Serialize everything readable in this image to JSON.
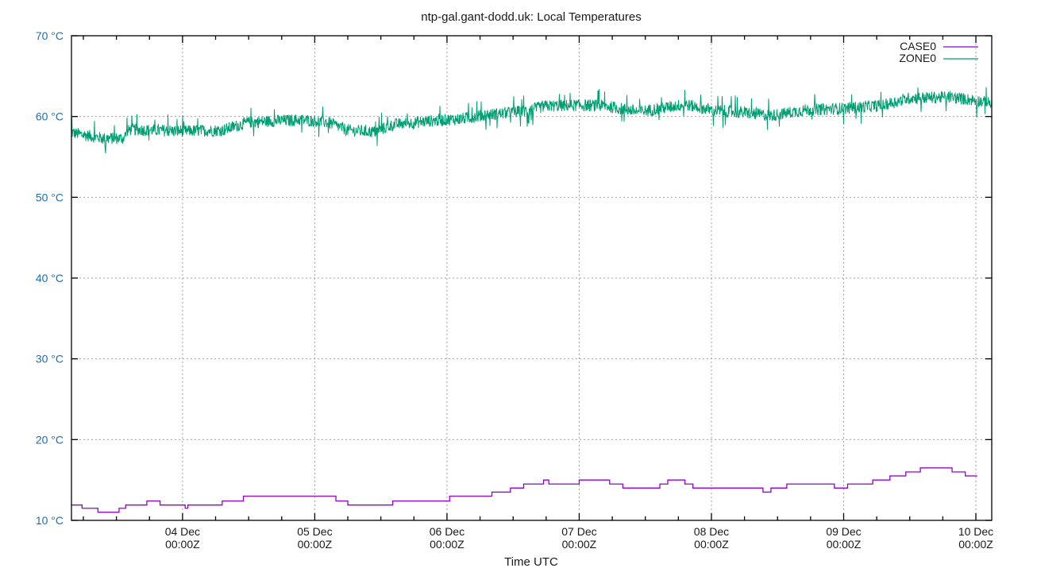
{
  "chart_data": {
    "type": "line",
    "title": "ntp-gal.gant-dodd.uk: Local Temperatures",
    "xlabel": "Time UTC",
    "ylabel": "",
    "ylim": [
      10,
      70
    ],
    "y_ticks": [
      "10 °C",
      "20 °C",
      "30 °C",
      "40 °C",
      "50 °C",
      "60 °C",
      "70 °C"
    ],
    "y_tick_values": [
      10,
      20,
      30,
      40,
      50,
      60,
      70
    ],
    "x_ticks": [
      {
        "day": "04 Dec",
        "time": "00:00Z",
        "x_days": 0
      },
      {
        "day": "05 Dec",
        "time": "00:00Z",
        "x_days": 1
      },
      {
        "day": "06 Dec",
        "time": "00:00Z",
        "x_days": 2
      },
      {
        "day": "07 Dec",
        "time": "00:00Z",
        "x_days": 3
      },
      {
        "day": "08 Dec",
        "time": "00:00Z",
        "x_days": 4
      },
      {
        "day": "09 Dec",
        "time": "00:00Z",
        "x_days": 5
      },
      {
        "day": "10 Dec",
        "time": "00:00Z",
        "x_days": 6
      }
    ],
    "xlim_days_from_04Dec": [
      -0.84,
      6.12
    ],
    "minor_tick_hours": 6,
    "grid": true,
    "legend_position": "top-right",
    "series": [
      {
        "name": "CASE0",
        "color": "#9400d3",
        "style": "steps",
        "points_days_temp": [
          [
            -0.84,
            11.9
          ],
          [
            -0.76,
            11.5
          ],
          [
            -0.64,
            11.0
          ],
          [
            -0.48,
            11.5
          ],
          [
            -0.43,
            11.9
          ],
          [
            -0.27,
            12.4
          ],
          [
            -0.17,
            11.9
          ],
          [
            0.02,
            11.5
          ],
          [
            0.04,
            11.9
          ],
          [
            0.3,
            12.4
          ],
          [
            0.46,
            13.0
          ],
          [
            1.16,
            12.4
          ],
          [
            1.25,
            11.9
          ],
          [
            1.59,
            12.4
          ],
          [
            2.02,
            13.0
          ],
          [
            2.34,
            13.5
          ],
          [
            2.48,
            14.0
          ],
          [
            2.58,
            14.5
          ],
          [
            2.73,
            15.0
          ],
          [
            2.77,
            14.5
          ],
          [
            3.0,
            15.0
          ],
          [
            3.23,
            14.5
          ],
          [
            3.33,
            14.0
          ],
          [
            3.61,
            14.5
          ],
          [
            3.67,
            15.0
          ],
          [
            3.8,
            14.5
          ],
          [
            3.86,
            14.0
          ],
          [
            4.39,
            13.5
          ],
          [
            4.45,
            14.0
          ],
          [
            4.57,
            14.5
          ],
          [
            4.93,
            14.0
          ],
          [
            5.03,
            14.5
          ],
          [
            5.22,
            15.0
          ],
          [
            5.35,
            15.5
          ],
          [
            5.47,
            16.0
          ],
          [
            5.58,
            16.5
          ],
          [
            5.82,
            16.0
          ],
          [
            5.92,
            15.5
          ],
          [
            6.01,
            15.5
          ]
        ]
      },
      {
        "name": "ZONE0",
        "color": "#009e73",
        "style": "noisy-line",
        "noise_band_c": 1.0,
        "trend_days_temp": [
          [
            -0.84,
            58.0
          ],
          [
            -0.6,
            57.3
          ],
          [
            -0.45,
            57.3
          ],
          [
            -0.4,
            58.4
          ],
          [
            0.0,
            58.2
          ],
          [
            0.3,
            58.3
          ],
          [
            0.5,
            59.3
          ],
          [
            0.9,
            59.6
          ],
          [
            1.1,
            59.3
          ],
          [
            1.25,
            58.3
          ],
          [
            1.45,
            58.1
          ],
          [
            1.6,
            59.0
          ],
          [
            1.9,
            59.5
          ],
          [
            2.1,
            59.7
          ],
          [
            2.3,
            60.2
          ],
          [
            2.6,
            60.7
          ],
          [
            2.75,
            61.3
          ],
          [
            3.0,
            61.4
          ],
          [
            3.2,
            61.3
          ],
          [
            3.45,
            60.6
          ],
          [
            3.65,
            61.1
          ],
          [
            3.8,
            61.5
          ],
          [
            4.0,
            60.8
          ],
          [
            4.3,
            60.4
          ],
          [
            4.45,
            60.1
          ],
          [
            4.7,
            60.8
          ],
          [
            5.0,
            61.0
          ],
          [
            5.3,
            61.4
          ],
          [
            5.5,
            62.3
          ],
          [
            5.8,
            62.4
          ],
          [
            6.0,
            62.0
          ],
          [
            6.12,
            61.6
          ]
        ]
      }
    ]
  }
}
